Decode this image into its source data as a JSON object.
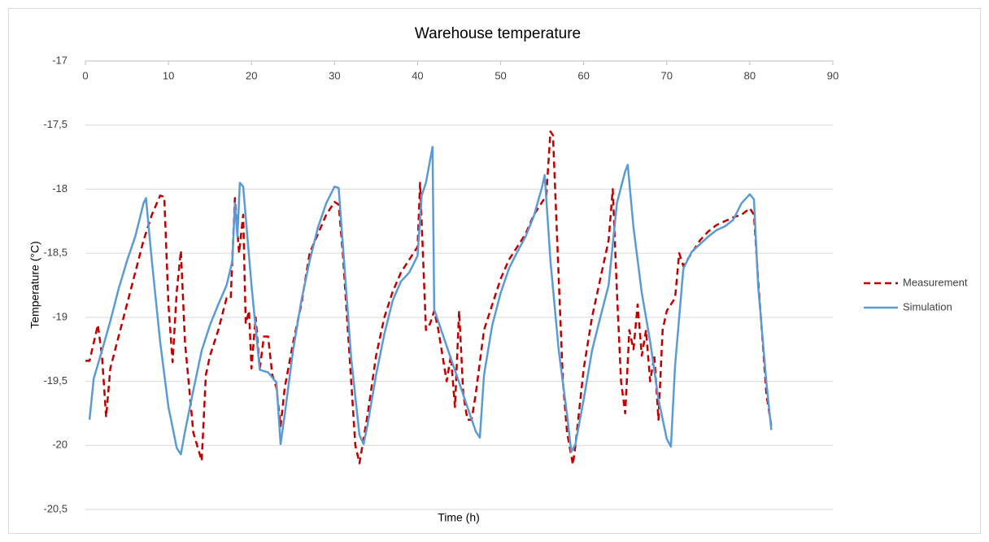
{
  "chart_data": {
    "type": "line",
    "title": "Warehouse temperature",
    "x_label": "Time (h)",
    "y_label": "Temperature (°C)",
    "xlim": [
      0,
      90
    ],
    "xticks": [
      0,
      10,
      20,
      30,
      40,
      50,
      60,
      70,
      80,
      90
    ],
    "ylim": [
      -20.5,
      -17
    ],
    "yticks": [
      -17,
      {
        "value": -17.5,
        "label": "-17,5"
      },
      -18,
      {
        "value": -18.5,
        "label": "-18,5"
      },
      -19,
      {
        "value": -19.5,
        "label": "-19,5"
      },
      -20,
      {
        "value": -20.5,
        "label": "-20,5"
      }
    ],
    "grid": true,
    "legend": "right",
    "series": [
      {
        "name": "Measurement",
        "color": "#c00000",
        "dash": true,
        "x": [
          0,
          0.5,
          1,
          1.5,
          2,
          2.5,
          3,
          4,
          5,
          6,
          7,
          8,
          9,
          9.5,
          10,
          10.5,
          11,
          11.5,
          12,
          13,
          14,
          14.5,
          15,
          16,
          17,
          17.5,
          18,
          18.5,
          19,
          19.3,
          19.7,
          20,
          20.5,
          21,
          21.5,
          22,
          22.5,
          23,
          23.5,
          24,
          25,
          26,
          27,
          28,
          29,
          30,
          30.5,
          31,
          32,
          32.5,
          33,
          34,
          35,
          36,
          37,
          38,
          39,
          40,
          40.3,
          40.7,
          41,
          41.5,
          42,
          42.5,
          43,
          43.5,
          44,
          44.5,
          45,
          45.5,
          46,
          46.5,
          47,
          48,
          49,
          50,
          51,
          52,
          53,
          54,
          55,
          55.5,
          56,
          56.3,
          57,
          57.5,
          58,
          58.7,
          59,
          60,
          61,
          62,
          63,
          63.5,
          64,
          64.5,
          65,
          65.5,
          66,
          66.5,
          67,
          67.5,
          68,
          68.5,
          69,
          69.5,
          70,
          71,
          71.5,
          72,
          73,
          74,
          75,
          76,
          77,
          78,
          79,
          80,
          80.5,
          81,
          82,
          82.6
        ],
        "values": [
          -19.34,
          -19.34,
          -19.2,
          -19.06,
          -19.3,
          -19.78,
          -19.4,
          -19.15,
          -18.9,
          -18.65,
          -18.4,
          -18.2,
          -18.05,
          -18.06,
          -18.9,
          -19.35,
          -18.8,
          -18.48,
          -19.2,
          -19.9,
          -20.12,
          -19.45,
          -19.3,
          -19.1,
          -18.85,
          -18.85,
          -18.07,
          -18.5,
          -18.2,
          -19.05,
          -18.95,
          -19.4,
          -19.0,
          -19.4,
          -19.15,
          -19.15,
          -19.45,
          -19.55,
          -19.85,
          -19.55,
          -19.2,
          -18.9,
          -18.5,
          -18.35,
          -18.2,
          -18.1,
          -18.12,
          -18.5,
          -19.5,
          -20.0,
          -20.14,
          -19.75,
          -19.3,
          -19.0,
          -18.8,
          -18.65,
          -18.55,
          -18.45,
          -17.95,
          -18.6,
          -19.1,
          -19.05,
          -18.95,
          -19.1,
          -19.3,
          -19.5,
          -19.3,
          -19.7,
          -18.95,
          -19.6,
          -19.8,
          -19.8,
          -19.6,
          -19.1,
          -18.9,
          -18.7,
          -18.55,
          -18.45,
          -18.35,
          -18.2,
          -18.1,
          -18.05,
          -17.55,
          -17.58,
          -18.7,
          -19.5,
          -19.9,
          -20.15,
          -20.0,
          -19.4,
          -19.0,
          -18.7,
          -18.4,
          -18.0,
          -18.8,
          -19.5,
          -19.75,
          -19.1,
          -19.25,
          -18.9,
          -19.3,
          -19.1,
          -19.5,
          -19.3,
          -19.8,
          -19.1,
          -18.95,
          -18.85,
          -18.5,
          -18.6,
          -18.5,
          -18.4,
          -18.33,
          -18.28,
          -18.25,
          -18.22,
          -18.2,
          -18.15,
          -18.2,
          -18.7,
          -19.6,
          -19.85
        ]
      },
      {
        "name": "Simulation",
        "color": "#5b9bd5",
        "dash": false,
        "x": [
          0.5,
          1,
          2,
          3,
          4,
          5,
          6,
          7,
          7.3,
          8,
          9,
          10,
          11,
          11.5,
          12,
          13,
          14,
          15,
          16,
          17,
          17.7,
          18,
          18.3,
          18.6,
          19,
          20,
          21,
          22,
          23,
          23.5,
          24,
          25,
          26,
          27,
          28,
          29,
          30,
          30.5,
          31,
          32,
          33,
          33.5,
          34,
          35,
          36,
          37,
          38,
          39,
          40,
          40.5,
          41,
          41.8,
          42,
          43,
          44,
          45,
          46,
          47,
          47.5,
          48,
          49,
          50,
          51,
          52,
          53,
          54,
          55,
          55.3,
          56,
          57,
          58,
          58.5,
          59,
          60,
          61,
          62,
          63,
          64,
          65,
          65.3,
          66,
          67,
          68,
          69,
          70,
          70.5,
          71,
          72,
          73,
          74,
          75,
          76,
          77,
          78,
          79,
          80,
          80.5,
          81,
          82,
          82.6
        ],
        "values": [
          -19.8,
          -19.48,
          -19.26,
          -19.03,
          -18.78,
          -18.56,
          -18.37,
          -18.11,
          -18.07,
          -18.56,
          -19.19,
          -19.7,
          -20.02,
          -20.07,
          -19.89,
          -19.57,
          -19.26,
          -19.06,
          -18.9,
          -18.75,
          -18.56,
          -18.11,
          -18.37,
          -17.95,
          -17.98,
          -18.75,
          -19.41,
          -19.43,
          -19.51,
          -19.99,
          -19.76,
          -19.26,
          -18.87,
          -18.56,
          -18.3,
          -18.11,
          -17.98,
          -17.99,
          -18.43,
          -19.32,
          -19.92,
          -19.99,
          -19.83,
          -19.45,
          -19.13,
          -18.87,
          -18.72,
          -18.65,
          -18.52,
          -18.05,
          -17.95,
          -17.67,
          -18.94,
          -19.13,
          -19.32,
          -19.51,
          -19.7,
          -19.89,
          -19.94,
          -19.45,
          -19.06,
          -18.81,
          -18.62,
          -18.49,
          -18.37,
          -18.21,
          -17.98,
          -17.89,
          -18.56,
          -19.26,
          -19.76,
          -20.05,
          -19.99,
          -19.64,
          -19.26,
          -19.0,
          -18.75,
          -18.11,
          -17.86,
          -17.81,
          -18.3,
          -18.81,
          -19.19,
          -19.64,
          -19.95,
          -20.01,
          -19.38,
          -18.62,
          -18.49,
          -18.43,
          -18.37,
          -18.32,
          -18.29,
          -18.24,
          -18.11,
          -18.04,
          -18.08,
          -18.75,
          -19.51,
          -19.88
        ]
      }
    ]
  }
}
